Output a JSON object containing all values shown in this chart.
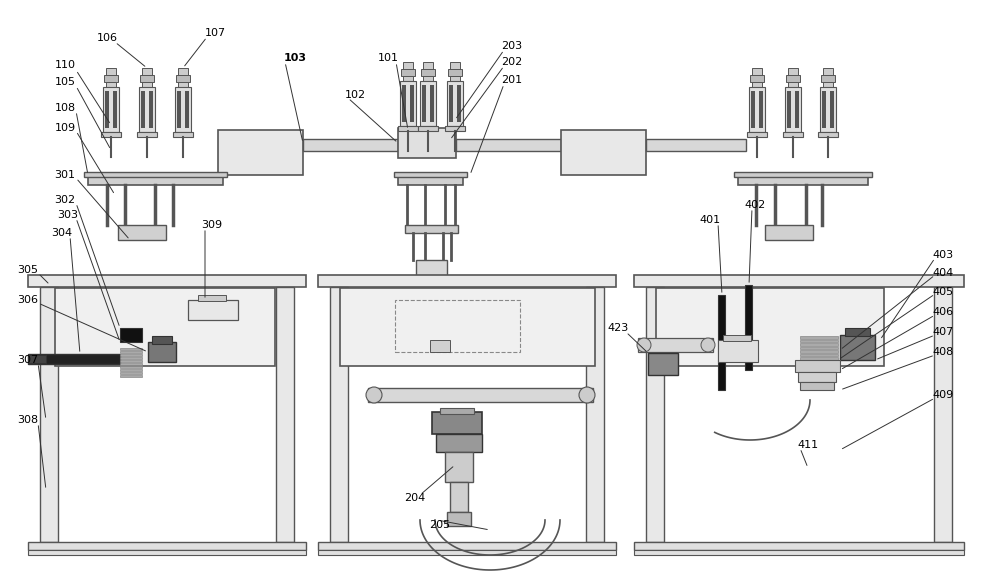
{
  "bg_color": "#ffffff",
  "lc": "#555555",
  "dc": "#333333",
  "figsize": [
    10.0,
    5.85
  ],
  "dpi": 100
}
